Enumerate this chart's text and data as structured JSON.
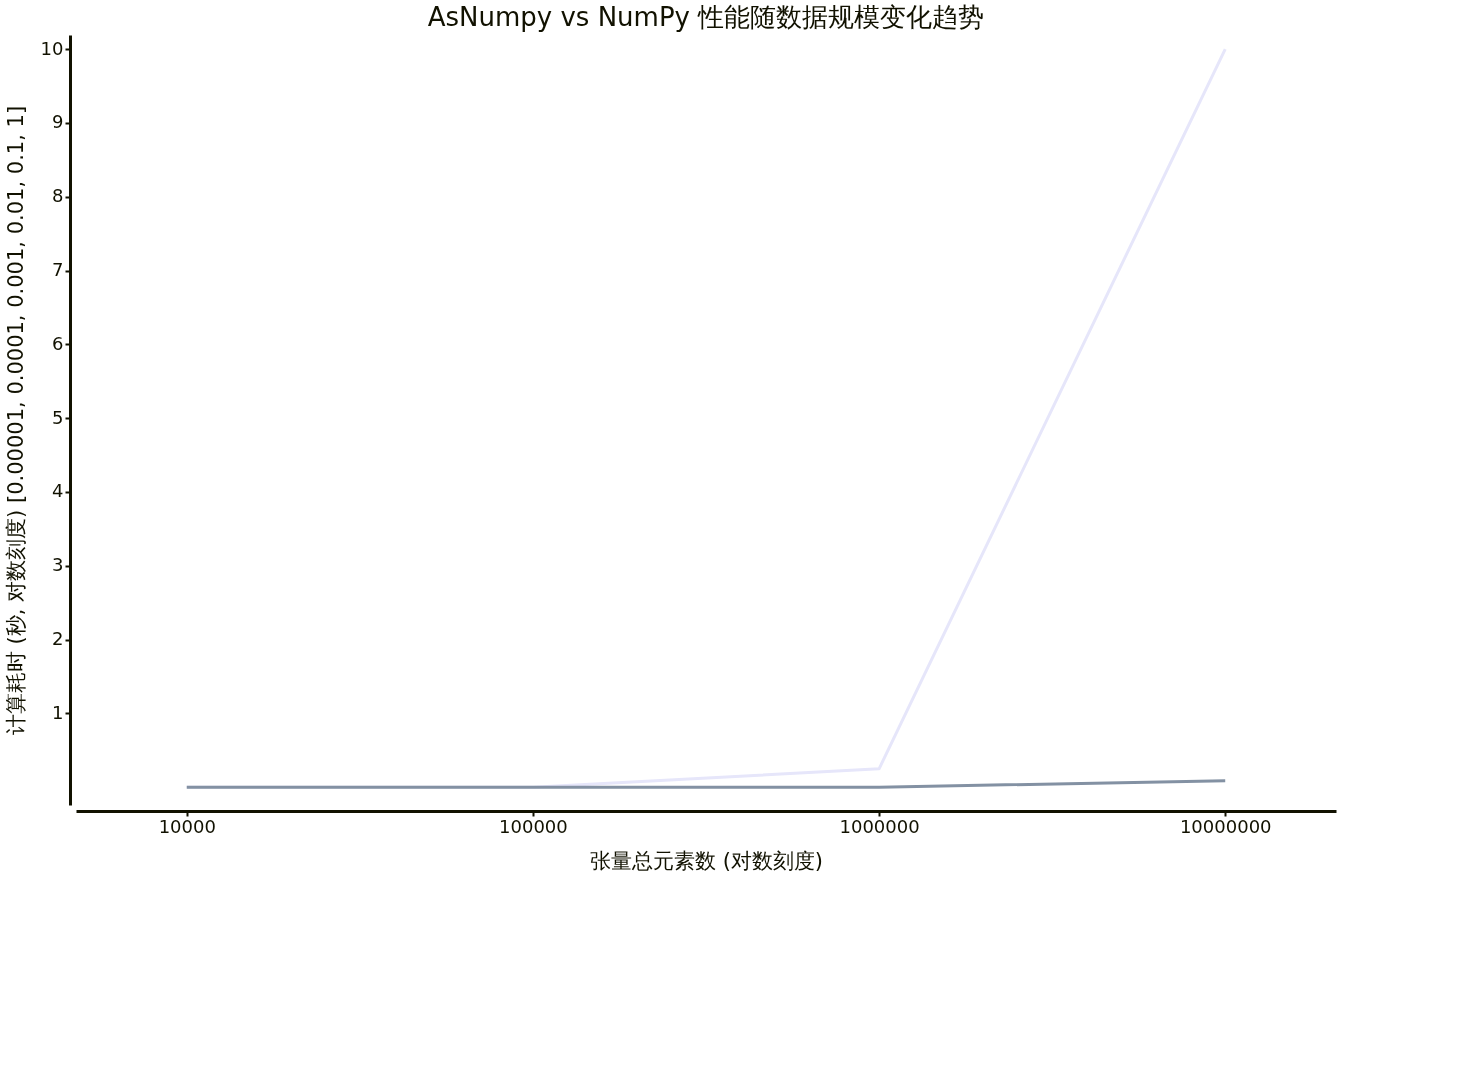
{
  "chart_data": {
    "type": "line",
    "title": "AsNumpy vs NumPy 性能随数据规模变化趋势",
    "xlabel": "张量总元素数 (对数刻度)",
    "ylabel": "计算耗时 (秒, 对数刻度) [0.00001, 0.0001, 0.001, 0.01, 0.1, 1]",
    "categories": [
      "10000",
      "100000",
      "1000000",
      "10000000"
    ],
    "series": [
      {
        "color": "#e6e6fa",
        "values": [
          0,
          0,
          0.25,
          10
        ]
      },
      {
        "color": "#8391a3",
        "values": [
          0,
          0,
          0,
          0.09
        ]
      }
    ],
    "ylim": [
      -0.24,
      10.19
    ],
    "yticks": [
      1,
      2,
      3,
      4,
      5,
      6,
      7,
      8,
      9,
      10
    ],
    "grid": false,
    "legend": false,
    "marker": "none",
    "line_style": "solid"
  }
}
